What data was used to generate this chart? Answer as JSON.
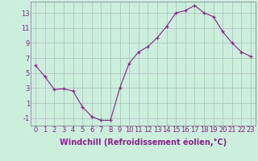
{
  "x": [
    0,
    1,
    2,
    3,
    4,
    5,
    6,
    7,
    8,
    9,
    10,
    11,
    12,
    13,
    14,
    15,
    16,
    17,
    18,
    19,
    20,
    21,
    22,
    23
  ],
  "y": [
    6.0,
    4.5,
    2.8,
    2.9,
    2.6,
    0.5,
    -0.8,
    -1.3,
    -1.3,
    3.0,
    6.3,
    7.8,
    8.5,
    9.7,
    11.2,
    13.0,
    13.3,
    14.0,
    13.0,
    12.5,
    10.5,
    9.0,
    7.8,
    7.2
  ],
  "line_color": "#882288",
  "marker": "+",
  "marker_color": "#882288",
  "bg_color": "#cceedd",
  "grid_color": "#aabbbb",
  "xlabel": "Windchill (Refroidissement éolien,°C)",
  "xlabel_color": "#882288",
  "tick_color": "#882288",
  "ylim": [
    -2.0,
    14.5
  ],
  "yticks": [
    -1,
    1,
    3,
    5,
    7,
    9,
    11,
    13
  ],
  "xlim": [
    -0.5,
    23.5
  ],
  "xticks": [
    0,
    1,
    2,
    3,
    4,
    5,
    6,
    7,
    8,
    9,
    10,
    11,
    12,
    13,
    14,
    15,
    16,
    17,
    18,
    19,
    20,
    21,
    22,
    23
  ],
  "xtick_labels": [
    "0",
    "1",
    "2",
    "3",
    "4",
    "5",
    "6",
    "7",
    "8",
    "9",
    "10",
    "11",
    "12",
    "13",
    "14",
    "15",
    "16",
    "17",
    "18",
    "19",
    "20",
    "21",
    "22",
    "23"
  ],
  "label_fontsize": 7,
  "tick_fontsize": 6
}
